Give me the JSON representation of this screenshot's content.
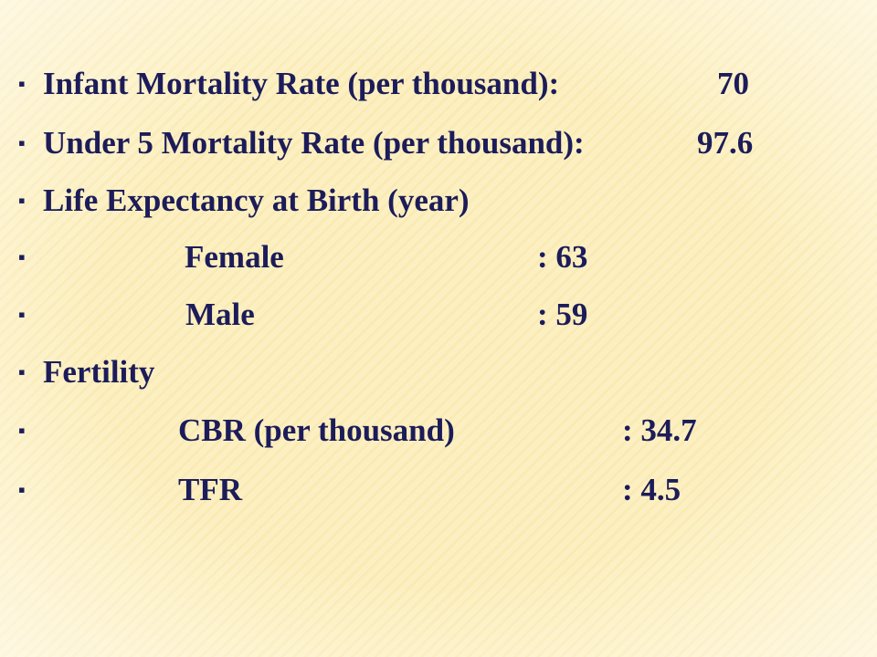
{
  "slide": {
    "items": [
      {
        "label": "Infant Mortality Rate (per thousand):",
        "value": "70"
      },
      {
        "label": "Under 5 Mortality Rate (per thousand):",
        "value": "97.6"
      },
      {
        "label": "Life Expectancy at Birth (year)"
      },
      {
        "label": "Female",
        "value": ": 63"
      },
      {
        "label": "Male",
        "value": ": 59"
      },
      {
        "label": "Fertility"
      },
      {
        "label": "CBR (per thousand)",
        "value": ": 34.7"
      },
      {
        "label": "TFR",
        "value": ": 4.5"
      }
    ]
  }
}
